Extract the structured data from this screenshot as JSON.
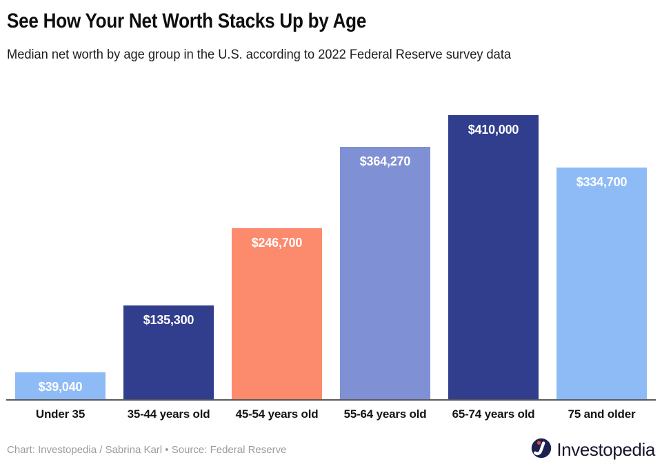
{
  "header": {
    "title": "See How Your Net Worth Stacks Up by Age",
    "subtitle": "Median net worth by age group in the U.S. according to 2022 Federal Reserve survey data"
  },
  "chart_data": {
    "type": "bar",
    "title": "See How Your Net Worth Stacks Up by Age",
    "subtitle": "Median net worth by age group in the U.S. according to 2022 Federal Reserve survey data",
    "categories": [
      "Under 35",
      "35-44 years old",
      "45-54 years old",
      "55-64 years old",
      "65-74 years old",
      "75 and older"
    ],
    "values": [
      39040,
      135300,
      246700,
      364270,
      410000,
      334700
    ],
    "value_labels": [
      "$39,040",
      "$135,300",
      "$246,700",
      "$364,270",
      "$410,000",
      "$334,700"
    ],
    "bar_colors": [
      "#8EBBF6",
      "#313E8D",
      "#FC8A6D",
      "#8090D4",
      "#313E8D",
      "#8EBBF6"
    ],
    "xlabel": "",
    "ylabel": "",
    "ylim": [
      0,
      450000
    ],
    "grid": false,
    "legend": false,
    "value_label_position": "inside-top",
    "axis_line_color": "#595959"
  },
  "footer": {
    "credit": "Chart: Investopedia / Sabrina Karl • Source: Federal Reserve",
    "brand_name": "Investopedia"
  },
  "colors": {
    "brand_navy": "#1c2150",
    "brand_orange": "#e2492f",
    "light_blue": "#8EBBF6",
    "navy": "#313E8D",
    "coral": "#FC8A6D",
    "periwinkle": "#8090D4"
  }
}
